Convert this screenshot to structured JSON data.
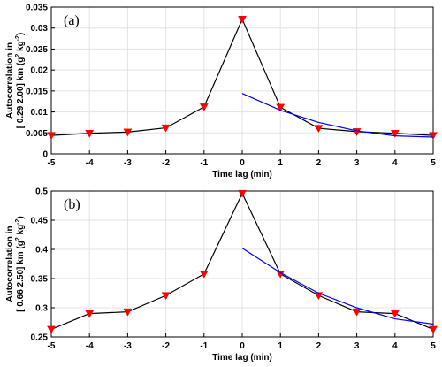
{
  "colors": {
    "data_line": "#000000",
    "marker": "#ff0000",
    "fit_line": "#0000ff"
  },
  "chart_data": [
    {
      "type": "line",
      "panel_label": "(a)",
      "xlabel": "Time lag (min)",
      "ylabel_line1": "Autocorrelation in",
      "ylabel_line2_prefix": "[ 0.29  2.00] km (g",
      "ylabel_unit_mid": " kg",
      "ylabel_suffix": ")",
      "ylabel_sup1": "2",
      "ylabel_sup2": "-2",
      "xlim": [
        -5,
        5
      ],
      "ylim": [
        0,
        0.035
      ],
      "xticks": [
        -5,
        -4,
        -3,
        -2,
        -1,
        0,
        1,
        2,
        3,
        4,
        5
      ],
      "xtick_labels": [
        "-5",
        "-4",
        "-3",
        "-2",
        "-1",
        "0",
        "1",
        "2",
        "3",
        "4",
        "5"
      ],
      "yticks": [
        0,
        0.005,
        0.01,
        0.015,
        0.02,
        0.025,
        0.03,
        0.035
      ],
      "ytick_labels": [
        "0",
        "0.005",
        "0.01",
        "0.015",
        "0.02",
        "0.025",
        "0.03",
        "0.035"
      ],
      "grid": true,
      "series": [
        {
          "style": "black-line-red-triangles",
          "x": [
            -5,
            -4,
            -3,
            -2,
            -1,
            0,
            1,
            2,
            3,
            4,
            5
          ],
          "y": [
            0.0044,
            0.0049,
            0.0052,
            0.0062,
            0.0112,
            0.0321,
            0.0111,
            0.0061,
            0.0053,
            0.0049,
            0.0044
          ]
        },
        {
          "style": "blue-fit-line",
          "x": [
            0,
            1,
            2,
            3,
            4,
            5
          ],
          "y": [
            0.0144,
            0.0104,
            0.0075,
            0.0055,
            0.0043,
            0.004
          ]
        }
      ]
    },
    {
      "type": "line",
      "panel_label": "(b)",
      "xlabel": "Time lag (min)",
      "ylabel_line1": "Autocorrelation in",
      "ylabel_line2_prefix": "[ 0.66  2.50] km (g",
      "ylabel_unit_mid": " kg",
      "ylabel_suffix": ")",
      "ylabel_sup1": "2",
      "ylabel_sup2": "-2",
      "xlim": [
        -5,
        5
      ],
      "ylim": [
        0.25,
        0.5
      ],
      "xticks": [
        -5,
        -4,
        -3,
        -2,
        -1,
        0,
        1,
        2,
        3,
        4,
        5
      ],
      "xtick_labels": [
        "-5",
        "-4",
        "-3",
        "-2",
        "-1",
        "0",
        "1",
        "2",
        "3",
        "4",
        "5"
      ],
      "yticks": [
        0.25,
        0.3,
        0.35,
        0.4,
        0.45,
        0.5
      ],
      "ytick_labels": [
        "0.25",
        "0.3",
        "0.35",
        "0.4",
        "0.45",
        "0.5"
      ],
      "grid": true,
      "series": [
        {
          "style": "black-line-red-triangles",
          "x": [
            -5,
            -4,
            -3,
            -2,
            -1,
            0,
            1,
            2,
            3,
            4,
            5
          ],
          "y": [
            0.263,
            0.29,
            0.293,
            0.321,
            0.358,
            0.496,
            0.358,
            0.321,
            0.293,
            0.29,
            0.263
          ]
        },
        {
          "style": "blue-fit-line",
          "x": [
            0,
            1,
            2,
            3,
            4,
            5
          ],
          "y": [
            0.402,
            0.36,
            0.325,
            0.3,
            0.281,
            0.272
          ]
        }
      ]
    }
  ]
}
